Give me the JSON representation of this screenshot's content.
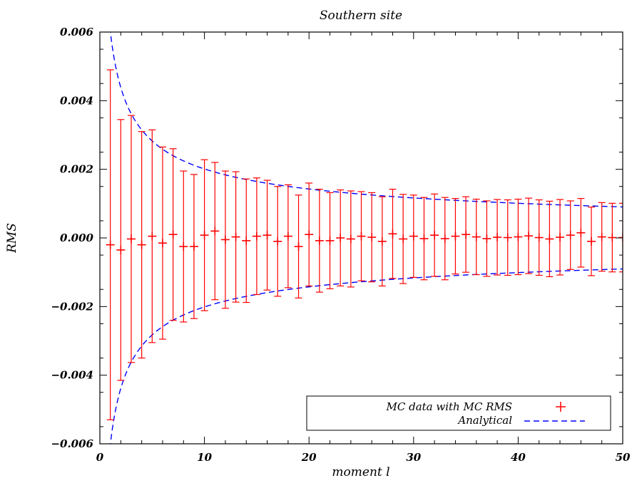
{
  "chart_data": {
    "type": "scatter",
    "title": "Southern site",
    "xlabel": "moment l",
    "ylabel": "RMS",
    "xlim": [
      0,
      50
    ],
    "ylim": [
      -0.006,
      0.006
    ],
    "x_ticks": [
      "0",
      "10",
      "20",
      "30",
      "40",
      "50"
    ],
    "y_ticks": [
      "−0.006",
      "−0.004",
      "−0.002",
      "0.000",
      "0.002",
      "0.004",
      "0.006"
    ],
    "grid": false,
    "legend_position": "bottom-right",
    "series": [
      {
        "name": "MC data with MC RMS",
        "color": "#ff0000",
        "marker": "plus",
        "x": [
          1,
          2,
          3,
          4,
          5,
          6,
          7,
          8,
          9,
          10,
          11,
          12,
          13,
          14,
          15,
          16,
          17,
          18,
          19,
          20,
          21,
          22,
          23,
          24,
          25,
          26,
          27,
          28,
          29,
          30,
          31,
          32,
          33,
          34,
          35,
          36,
          37,
          38,
          39,
          40,
          41,
          42,
          43,
          44,
          45,
          46,
          47,
          48,
          49,
          50
        ],
        "y": [
          -0.0002,
          -0.00035,
          -3e-05,
          -0.0002,
          5e-05,
          -0.00015,
          0.0001,
          -0.00025,
          -0.00025,
          8e-05,
          0.0002,
          -5e-05,
          3e-05,
          -8e-05,
          5e-05,
          8e-05,
          -0.0001,
          5e-05,
          -0.00025,
          0.0001,
          -8e-05,
          -8e-05,
          0.0,
          -3e-05,
          5e-05,
          2e-05,
          -0.0001,
          0.00012,
          -3e-05,
          5e-05,
          -2e-05,
          8e-05,
          -2e-05,
          5e-05,
          0.0001,
          3e-05,
          -2e-05,
          2e-05,
          1e-05,
          3e-05,
          6e-05,
          1e-05,
          -3e-05,
          2e-05,
          8e-05,
          0.00015,
          -0.0001,
          3e-05,
          1e-05,
          1e-05
        ],
        "error": [
          0.0051,
          0.0038,
          0.0036,
          0.0033,
          0.0031,
          0.0028,
          0.0025,
          0.0022,
          0.0021,
          0.0022,
          0.002,
          0.002,
          0.0019,
          0.0018,
          0.0017,
          0.0016,
          0.0016,
          0.0015,
          0.0015,
          0.0015,
          0.0015,
          0.0014,
          0.0014,
          0.0014,
          0.0013,
          0.0013,
          0.0013,
          0.0013,
          0.0013,
          0.0012,
          0.0012,
          0.0012,
          0.0012,
          0.0011,
          0.0011,
          0.0011,
          0.0011,
          0.0011,
          0.0011,
          0.0011,
          0.0011,
          0.0011,
          0.0011,
          0.0011,
          0.001,
          0.001,
          0.001,
          0.001,
          0.001,
          0.001
        ]
      },
      {
        "name": "Analytical",
        "color": "#0000ff",
        "line_style": "dashed",
        "formula": "y = ±0.0064 / sqrt(l + 0.13)"
      }
    ]
  }
}
